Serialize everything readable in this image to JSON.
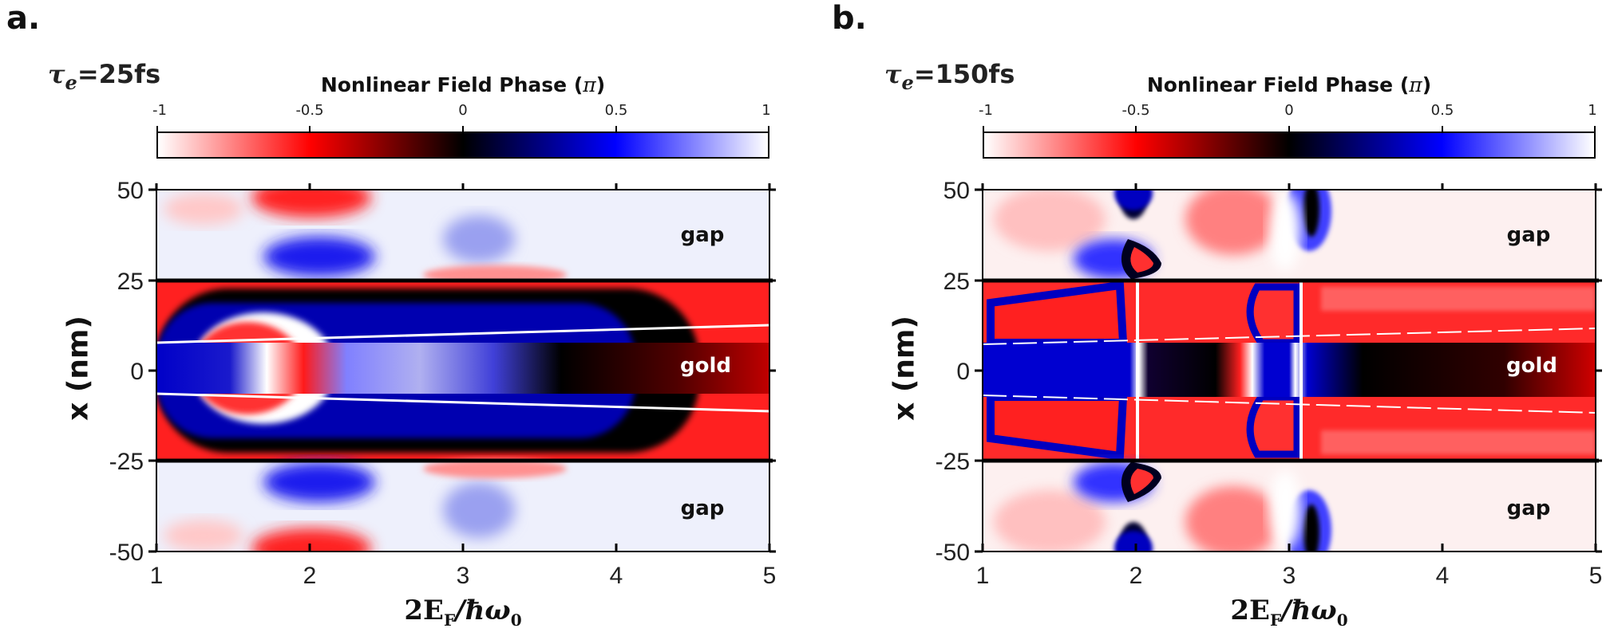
{
  "colorbar": {
    "title": "Nonlinear Field Phase",
    "unit_symbol": "π",
    "ticks": [
      "-1",
      "-0.5",
      "0",
      "0.5",
      "1"
    ],
    "tick_values": [
      -1,
      -0.5,
      0,
      0.5,
      1
    ],
    "colors": {
      "minus_one": "#ffffff",
      "minus_half": "#ff0000",
      "zero": "#000000",
      "plus_half": "#0000ff",
      "plus_one": "#ffffff"
    }
  },
  "axes": {
    "xlabel_main": "2E",
    "xlabel_sub": "F",
    "xlabel_rest": "/ħω",
    "xlabel_sub2": "0",
    "ylabel": "x (nm)",
    "xticks": [
      "1",
      "2",
      "3",
      "4",
      "5"
    ],
    "yticks": [
      "50",
      "25",
      "0",
      "-25",
      "-50"
    ]
  },
  "panel_a": {
    "letter": "a.",
    "tau_symbol": "τ",
    "tau_sub": "e",
    "tau_value": "=25fs",
    "labels": {
      "gap_top": "gap",
      "gold": "gold",
      "gap_bottom": "gap"
    }
  },
  "panel_b": {
    "letter": "b.",
    "tau_symbol": "τ",
    "tau_sub": "e",
    "tau_value": "=150fs",
    "labels": {
      "gap_top": "gap",
      "gold": "gold",
      "gap_bottom": "gap"
    }
  },
  "chart_data": [
    {
      "type": "heatmap",
      "panel": "a",
      "title": "τe=25fs",
      "xlabel": "2E_F/ħω_0",
      "ylabel": "x (nm)",
      "xlim": [
        1,
        5
      ],
      "ylim": [
        -50,
        50
      ],
      "color_range": [
        -1,
        1
      ],
      "interfaces_nm": [
        25,
        -25
      ],
      "regions": [
        {
          "name": "gap",
          "x_range": [
            25,
            50
          ]
        },
        {
          "name": "gold",
          "x_range": [
            -25,
            25
          ]
        },
        {
          "name": "gap",
          "x_range": [
            -50,
            -25
          ]
        }
      ]
    },
    {
      "type": "heatmap",
      "panel": "b",
      "title": "τe=150fs",
      "xlabel": "2E_F/ħω_0",
      "ylabel": "x (nm)",
      "xlim": [
        1,
        5
      ],
      "ylim": [
        -50,
        50
      ],
      "color_range": [
        -1,
        1
      ],
      "interfaces_nm": [
        25,
        -25
      ],
      "regions": [
        {
          "name": "gap",
          "x_range": [
            25,
            50
          ]
        },
        {
          "name": "gold",
          "x_range": [
            -25,
            25
          ]
        },
        {
          "name": "gap",
          "x_range": [
            -50,
            -25
          ]
        }
      ]
    }
  ]
}
